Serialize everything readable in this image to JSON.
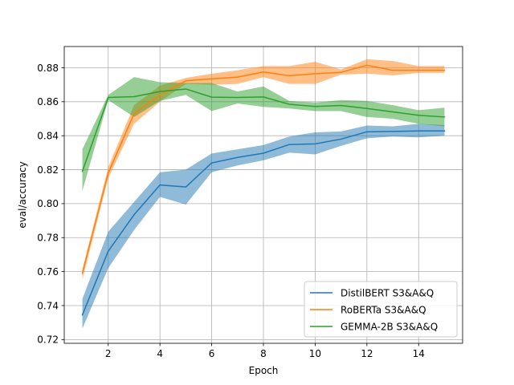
{
  "chart_data": {
    "type": "line",
    "xlabel": "Epoch",
    "ylabel": "eval/accuracy",
    "xlim": [
      0.3,
      15.7
    ],
    "ylim": [
      0.7178,
      0.8925
    ],
    "xticks": [
      2,
      4,
      6,
      8,
      10,
      12,
      14
    ],
    "yticks": [
      0.72,
      0.74,
      0.76,
      0.78,
      0.8,
      0.82,
      0.84,
      0.86,
      0.88
    ],
    "xtick_labels": [
      "2",
      "4",
      "6",
      "8",
      "10",
      "12",
      "14"
    ],
    "ytick_labels": [
      "0.72",
      "0.74",
      "0.76",
      "0.78",
      "0.80",
      "0.82",
      "0.84",
      "0.86",
      "0.88"
    ],
    "grid": true,
    "legend_position": "lower-right",
    "x": [
      1,
      2,
      3,
      4,
      5,
      6,
      7,
      8,
      9,
      10,
      11,
      12,
      13,
      14,
      15
    ],
    "series": [
      {
        "name": "DistilBERT S3&A&Q",
        "color": "#1f77b4",
        "values": [
          0.7345,
          0.772,
          0.7935,
          0.811,
          0.8098,
          0.824,
          0.8272,
          0.8297,
          0.8348,
          0.8352,
          0.838,
          0.8423,
          0.8425,
          0.8428,
          0.8428
        ],
        "lower": [
          0.7265,
          0.762,
          0.7845,
          0.804,
          0.7995,
          0.8185,
          0.8225,
          0.8255,
          0.83,
          0.829,
          0.834,
          0.8385,
          0.8395,
          0.839,
          0.84
        ],
        "upper": [
          0.744,
          0.7835,
          0.801,
          0.8185,
          0.82,
          0.8295,
          0.832,
          0.8345,
          0.8395,
          0.842,
          0.8425,
          0.846,
          0.8455,
          0.847,
          0.8462
        ]
      },
      {
        "name": "RoBERTa S3&A&Q",
        "color": "#ff7f0e",
        "values": [
          0.759,
          0.818,
          0.853,
          0.864,
          0.8723,
          0.8735,
          0.8745,
          0.8775,
          0.8753,
          0.8765,
          0.8773,
          0.8815,
          0.8785,
          0.8785,
          0.8785
        ],
        "lower": [
          0.7555,
          0.815,
          0.847,
          0.86,
          0.8705,
          0.87,
          0.8705,
          0.8745,
          0.8705,
          0.8705,
          0.876,
          0.8765,
          0.8755,
          0.877,
          0.877
        ],
        "upper": [
          0.7615,
          0.8215,
          0.858,
          0.8695,
          0.874,
          0.8765,
          0.8785,
          0.881,
          0.881,
          0.8835,
          0.879,
          0.885,
          0.884,
          0.881,
          0.881
        ]
      },
      {
        "name": "GEMMA-2B S3&A&Q",
        "color": "#2ca02c",
        "values": [
          0.819,
          0.8625,
          0.863,
          0.866,
          0.8675,
          0.8627,
          0.8625,
          0.8628,
          0.8585,
          0.8572,
          0.8578,
          0.856,
          0.854,
          0.852,
          0.851
        ],
        "lower": [
          0.8075,
          0.861,
          0.851,
          0.8605,
          0.864,
          0.8545,
          0.859,
          0.857,
          0.856,
          0.8545,
          0.8545,
          0.851,
          0.85,
          0.847,
          0.8455
        ],
        "upper": [
          0.832,
          0.864,
          0.8745,
          0.8715,
          0.871,
          0.871,
          0.866,
          0.869,
          0.8605,
          0.8595,
          0.861,
          0.8605,
          0.858,
          0.855,
          0.8565
        ]
      }
    ]
  }
}
